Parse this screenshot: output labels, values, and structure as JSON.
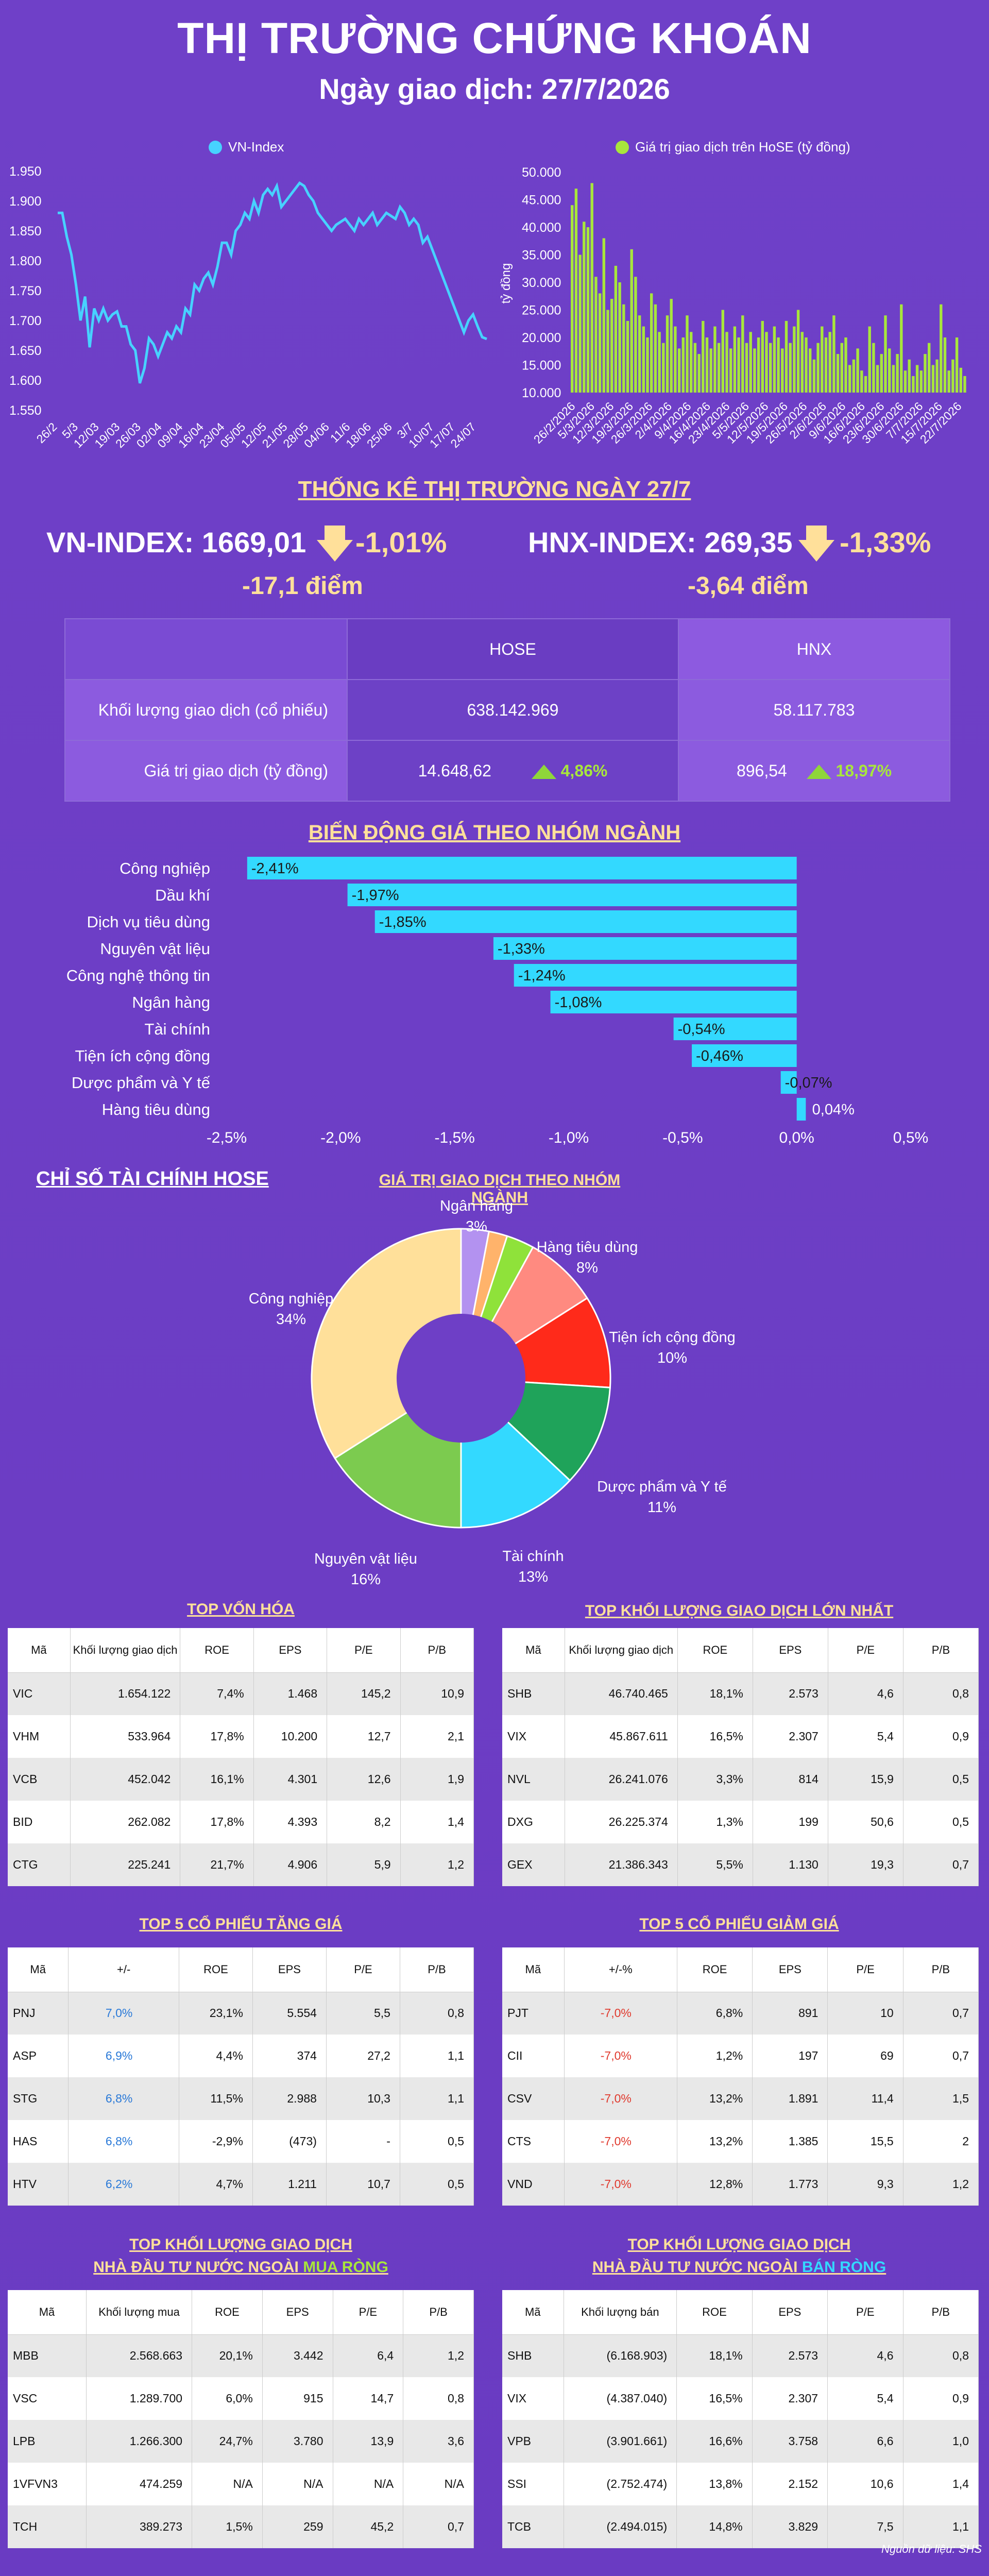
{
  "header": {
    "title": "THỊ TRƯỜNG CHỨNG KHOÁN",
    "subtitle": "Ngày giao dịch: 27/7/2026"
  },
  "colors": {
    "bg": "#6e3fc6",
    "line": "#47d2ff",
    "bars": "#a8e63c",
    "neg_bar": "#33d9ff"
  },
  "chart_data": [
    {
      "type": "line",
      "name": "VN-Index",
      "legend": "VN-Index",
      "ylim": [
        1550,
        1950
      ],
      "yticks": [
        "1.950",
        "1.900",
        "1.850",
        "1.800",
        "1.750",
        "1.700",
        "1.650",
        "1.600",
        "1.550"
      ],
      "xticks": [
        "26/2",
        "5/3",
        "12/03",
        "19/03",
        "26/03",
        "02/04",
        "09/04",
        "16/04",
        "23/04",
        "05/05",
        "12/05",
        "21/05",
        "28/05",
        "04/06",
        "11/6",
        "18/06",
        "25/06",
        "3/7",
        "10/07",
        "17/07",
        "24/07"
      ],
      "values": [
        1880,
        1880,
        1840,
        1810,
        1760,
        1700,
        1740,
        1655,
        1720,
        1700,
        1720,
        1700,
        1710,
        1715,
        1690,
        1690,
        1660,
        1650,
        1595,
        1620,
        1670,
        1660,
        1640,
        1660,
        1680,
        1670,
        1690,
        1680,
        1720,
        1710,
        1760,
        1750,
        1770,
        1780,
        1760,
        1790,
        1830,
        1830,
        1810,
        1850,
        1860,
        1880,
        1870,
        1900,
        1880,
        1910,
        1920,
        1910,
        1925,
        1890,
        1900,
        1910,
        1920,
        1930,
        1925,
        1910,
        1900,
        1880,
        1870,
        1860,
        1850,
        1860,
        1865,
        1870,
        1860,
        1850,
        1870,
        1860,
        1870,
        1880,
        1860,
        1870,
        1880,
        1875,
        1870,
        1890,
        1880,
        1860,
        1870,
        1860,
        1830,
        1840,
        1820,
        1800,
        1780,
        1760,
        1740,
        1720,
        1700,
        1680,
        1700,
        1710,
        1690,
        1672,
        1669
      ]
    },
    {
      "type": "bar",
      "name": "Giá trị giao dịch trên HoSE (tỷ đồng)",
      "legend": "Giá trị giao dịch trên HoSE (tỷ đồng)",
      "ylabel": "tỷ đồng",
      "ylim": [
        10000,
        50000
      ],
      "yticks": [
        "50.000",
        "45.000",
        "40.000",
        "35.000",
        "30.000",
        "25.000",
        "20.000",
        "15.000",
        "10.000"
      ],
      "xticks": [
        "26/2/2026",
        "5/3/2026",
        "12/3/2026",
        "19/3/2026",
        "26/3/2026",
        "2/4/2026",
        "9/4/2026",
        "16/4/2026",
        "23/4/2026",
        "5/5/2026",
        "12/5/2026",
        "19/5/2026",
        "26/5/2026",
        "2/6/2026",
        "9/6/2026",
        "16/6/2026",
        "23/6/2026",
        "30/6/2026",
        "7/7/2026",
        "15/7/2026",
        "22/7/2026"
      ],
      "values": [
        44000,
        47000,
        35000,
        41000,
        40000,
        48000,
        31000,
        28000,
        38000,
        25000,
        27000,
        33000,
        30000,
        26000,
        23000,
        36000,
        31000,
        24000,
        22000,
        20000,
        28000,
        26000,
        21000,
        19000,
        24000,
        27000,
        22000,
        18000,
        20000,
        24000,
        21000,
        19000,
        17000,
        23000,
        20000,
        18000,
        22000,
        19000,
        25000,
        21000,
        18000,
        22000,
        20000,
        24000,
        19000,
        21000,
        18000,
        20000,
        23000,
        21000,
        19000,
        22000,
        20000,
        18000,
        23000,
        19000,
        22000,
        25000,
        21000,
        20000,
        18000,
        16000,
        19000,
        22000,
        20000,
        21000,
        24000,
        17000,
        19000,
        20000,
        15000,
        16000,
        18000,
        14000,
        13000,
        22000,
        19000,
        15000,
        17000,
        24000,
        18000,
        15000,
        17000,
        26000,
        14000,
        16000,
        13000,
        15000,
        14000,
        17000,
        19000,
        15000,
        16000,
        26000,
        20000,
        14000,
        16000,
        20000,
        14500,
        13000
      ]
    },
    {
      "type": "bar",
      "orientation": "horizontal",
      "title": "BIẾN ĐỘNG GIÁ THEO NHÓM NGÀNH",
      "xlim": [
        -2.5,
        0.5
      ],
      "xticks": [
        "-2,5%",
        "-2,0%",
        "-1,5%",
        "-1,0%",
        "-0,5%",
        "0,0%",
        "0,5%"
      ],
      "categories": [
        "Công nghiệp",
        "Dầu khí",
        "Dịch vụ tiêu dùng",
        "Nguyên vật liệu",
        "Công nghệ thông tin",
        "Ngân hàng",
        "Tài chính",
        "Tiện ích cộng đồng",
        "Dược phẩm và Y tế",
        "Hàng tiêu dùng"
      ],
      "values": [
        -2.41,
        -1.97,
        -1.85,
        -1.33,
        -1.24,
        -1.08,
        -0.54,
        -0.46,
        -0.07,
        0.04
      ],
      "labels": [
        "-2,41%",
        "-1,97%",
        "-1,85%",
        "-1,33%",
        "-1,24%",
        "-1,08%",
        "-0,54%",
        "-0,46%",
        "-0,07%",
        "0,04%"
      ]
    },
    {
      "type": "pie",
      "title": "GIÁ TRỊ GIAO DỊCH THEO NHÓM NGÀNH",
      "slices": [
        {
          "name": "Công nghiệp",
          "pct": "34%",
          "value": 34,
          "color": "#ffe09a"
        },
        {
          "name": "Nguyên vật liệu",
          "pct": "16%",
          "value": 16,
          "color": "#7ccb4f"
        },
        {
          "name": "Tài chính",
          "pct": "13%",
          "value": 13,
          "color": "#33d9ff"
        },
        {
          "name": "Dược phẩm và Y tế",
          "pct": "11%",
          "value": 11,
          "color": "#1fa35a"
        },
        {
          "name": "Tiện ích cộng đồng",
          "pct": "10%",
          "value": 10,
          "color": "#ff2a1a"
        },
        {
          "name": "Hàng tiêu dùng",
          "pct": "8%",
          "value": 8,
          "color": "#ff8a80"
        },
        {
          "name": "",
          "pct": "",
          "value": 3,
          "color": "#8fe23a"
        },
        {
          "name": "",
          "pct": "",
          "value": 2,
          "color": "#ffb36b"
        },
        {
          "name": "Ngân hàng",
          "pct": "3%",
          "value": 3,
          "color": "#b392f0"
        }
      ]
    }
  ],
  "market": {
    "title": "THỐNG KÊ THỊ TRƯỜNG NGÀY 27/7",
    "vn": {
      "name": "VN-INDEX: 1669,01",
      "chg": "-1,01%",
      "pts": "-17,1 điểm"
    },
    "hnx": {
      "name": "HNX-INDEX: 269,35",
      "chg": "-1,33%",
      "pts": "-3,64 điểm"
    },
    "table": {
      "col1": "HOSE",
      "col2": "HNX",
      "row1": {
        "label": "Khối lượng giao dịch (cổ phiếu)",
        "hose": "638.142.969",
        "hnx": "58.117.783"
      },
      "row2": {
        "label": "Giá trị giao dịch (tỷ đồng)",
        "hose": "14.648,62",
        "hose_pct": "4,86%",
        "hnx": "896,54",
        "hnx_pct": "18,97%"
      }
    }
  },
  "fin_title": "CHỈ SỐ TÀI CHÍNH HOSE",
  "tables": {
    "top_cap": {
      "title": "TOP VỐN HÓA",
      "headers": [
        "Mã",
        "Khối lượng giao dịch",
        "ROE",
        "EPS",
        "P/E",
        "P/B"
      ],
      "rows": [
        [
          "VIC",
          "1.654.122",
          "7,4%",
          "1.468",
          "145,2",
          "10,9"
        ],
        [
          "VHM",
          "533.964",
          "17,8%",
          "10.200",
          "12,7",
          "2,1"
        ],
        [
          "VCB",
          "452.042",
          "16,1%",
          "4.301",
          "12,6",
          "1,9"
        ],
        [
          "BID",
          "262.082",
          "17,8%",
          "4.393",
          "8,2",
          "1,4"
        ],
        [
          "CTG",
          "225.241",
          "21,7%",
          "4.906",
          "5,9",
          "1,2"
        ]
      ]
    },
    "top_vol": {
      "title": "TOP KHỐI LƯỢNG GIAO DỊCH LỚN NHẤT",
      "headers": [
        "Mã",
        "Khối lượng giao dịch",
        "ROE",
        "EPS",
        "P/E",
        "P/B"
      ],
      "rows": [
        [
          "SHB",
          "46.740.465",
          "18,1%",
          "2.573",
          "4,6",
          "0,8"
        ],
        [
          "VIX",
          "45.867.611",
          "16,5%",
          "2.307",
          "5,4",
          "0,9"
        ],
        [
          "NVL",
          "26.241.076",
          "3,3%",
          "814",
          "15,9",
          "0,5"
        ],
        [
          "DXG",
          "26.225.374",
          "1,3%",
          "199",
          "50,6",
          "0,5"
        ],
        [
          "GEX",
          "21.386.343",
          "5,5%",
          "1.130",
          "19,3",
          "0,7"
        ]
      ]
    },
    "top_up": {
      "title": "TOP 5 CỔ PHIẾU TĂNG GIÁ",
      "headers": [
        "Mã",
        "+/-",
        "ROE",
        "EPS",
        "P/E",
        "P/B"
      ],
      "rows": [
        [
          "PNJ",
          "7,0%",
          "23,1%",
          "5.554",
          "5,5",
          "0,8"
        ],
        [
          "ASP",
          "6,9%",
          "4,4%",
          "374",
          "27,2",
          "1,1"
        ],
        [
          "STG",
          "6,8%",
          "11,5%",
          "2.988",
          "10,3",
          "1,1"
        ],
        [
          "HAS",
          "6,8%",
          "-2,9%",
          "(473)",
          "-",
          "0,5"
        ],
        [
          "HTV",
          "6,2%",
          "4,7%",
          "1.211",
          "10,7",
          "0,5"
        ]
      ]
    },
    "top_down": {
      "title": "TOP 5 CỔ PHIẾU GIẢM GIÁ",
      "headers": [
        "Mã",
        "+/-%",
        "ROE",
        "EPS",
        "P/E",
        "P/B"
      ],
      "rows": [
        [
          "PJT",
          "-7,0%",
          "6,8%",
          "891",
          "10",
          "0,7"
        ],
        [
          "CII",
          "-7,0%",
          "1,2%",
          "197",
          "69",
          "0,7"
        ],
        [
          "CSV",
          "-7,0%",
          "13,2%",
          "1.891",
          "11,4",
          "1,5"
        ],
        [
          "CTS",
          "-7,0%",
          "13,2%",
          "1.385",
          "15,5",
          "2"
        ],
        [
          "VND",
          "-7,0%",
          "12,8%",
          "1.773",
          "9,3",
          "1,2"
        ]
      ]
    },
    "foreign_buy": {
      "title1": "TOP KHỐI LƯỢNG GIAO DỊCH",
      "title2a": "NHÀ ĐẦU TƯ NƯỚC NGOÀI ",
      "title2b": "MUA RÒNG",
      "headers": [
        "Mã",
        "Khối lượng mua",
        "ROE",
        "EPS",
        "P/E",
        "P/B"
      ],
      "rows": [
        [
          "MBB",
          "2.568.663",
          "20,1%",
          "3.442",
          "6,4",
          "1,2"
        ],
        [
          "VSC",
          "1.289.700",
          "6,0%",
          "915",
          "14,7",
          "0,8"
        ],
        [
          "LPB",
          "1.266.300",
          "24,7%",
          "3.780",
          "13,9",
          "3,6"
        ],
        [
          "1VFVN3",
          "474.259",
          "N/A",
          "N/A",
          "N/A",
          "N/A"
        ],
        [
          "TCH",
          "389.273",
          "1,5%",
          "259",
          "45,2",
          "0,7"
        ]
      ]
    },
    "foreign_sell": {
      "title1": "TOP KHỐI LƯỢNG GIAO DỊCH",
      "title2a": "NHÀ ĐẦU TƯ NƯỚC NGOÀI ",
      "title2b": "BÁN RÒNG",
      "headers": [
        "Mã",
        "Khối lượng bán",
        "ROE",
        "EPS",
        "P/E",
        "P/B"
      ],
      "rows": [
        [
          "SHB",
          "(6.168.903)",
          "18,1%",
          "2.573",
          "4,6",
          "0,8"
        ],
        [
          "VIX",
          "(4.387.040)",
          "16,5%",
          "2.307",
          "5,4",
          "0,9"
        ],
        [
          "VPB",
          "(3.901.661)",
          "16,6%",
          "3.758",
          "6,6",
          "1,0"
        ],
        [
          "SSI",
          "(2.752.474)",
          "13,8%",
          "2.152",
          "10,6",
          "1,4"
        ],
        [
          "TCB",
          "(2.494.015)",
          "14,8%",
          "3.829",
          "7,5",
          "1,1"
        ]
      ]
    }
  },
  "source": "Nguồn dữ liệu: SHS"
}
